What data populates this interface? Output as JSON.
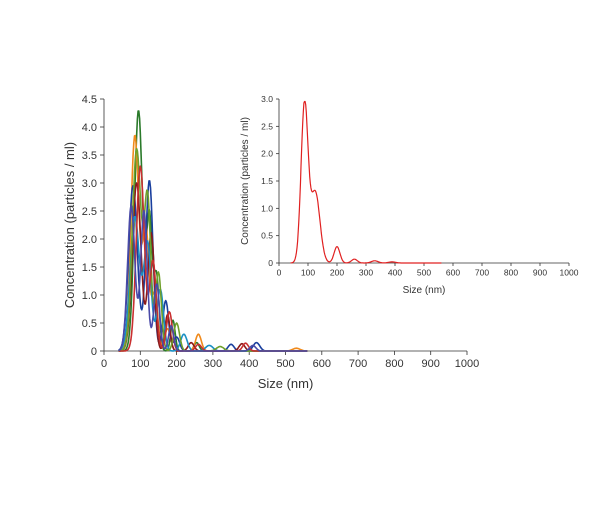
{
  "chart_data": [
    {
      "type": "line",
      "panel": "main",
      "xlabel": "Size (nm)",
      "ylabel": "Concentration (particles / ml)",
      "xlim": [
        0,
        1000
      ],
      "ylim": [
        0,
        4.5
      ],
      "x_ticks": [
        0,
        100,
        200,
        300,
        400,
        500,
        600,
        700,
        800,
        900,
        1000
      ],
      "y_ticks": [
        0,
        0.5,
        1.0,
        1.5,
        2.0,
        2.5,
        3.0,
        3.5,
        4.0,
        4.5
      ],
      "y_tick_labels": [
        "0",
        "0.5",
        "1.0",
        "1.5",
        "2.0",
        "2.5",
        "3.0",
        "3.5",
        "4.0",
        "4.5"
      ],
      "grid": false,
      "legend": "none",
      "series": [
        {
          "color": "#2a7a2a",
          "peaks": [
            [
              95,
              4.3,
              11
            ],
            [
              125,
              2.4,
              8
            ],
            [
              145,
              1.3,
              7
            ],
            [
              190,
              0.55,
              6
            ],
            [
              255,
              0.15,
              7
            ]
          ]
        },
        {
          "color": "#f08a1c",
          "peaks": [
            [
              85,
              3.85,
              11
            ],
            [
              115,
              2.2,
              9
            ],
            [
              140,
              1.0,
              8
            ],
            [
              175,
              0.4,
              8
            ],
            [
              260,
              0.3,
              8
            ],
            [
              530,
              0.05,
              10
            ]
          ]
        },
        {
          "color": "#1a3f9e",
          "peaks": [
            [
              80,
              2.95,
              12
            ],
            [
              125,
              3.05,
              10
            ],
            [
              170,
              0.9,
              8
            ],
            [
              200,
              0.25,
              8
            ],
            [
              350,
              0.12,
              8
            ],
            [
              420,
              0.15,
              9
            ]
          ]
        },
        {
          "color": "#8b1a1a",
          "peaks": [
            [
              90,
              3.0,
              12
            ],
            [
              130,
              2.1,
              9
            ],
            [
              175,
              0.65,
              7
            ],
            [
              240,
              0.15,
              8
            ],
            [
              380,
              0.13,
              8
            ]
          ]
        },
        {
          "color": "#1a8fc4",
          "peaks": [
            [
              85,
              2.4,
              13
            ],
            [
              120,
              1.9,
              10
            ],
            [
              155,
              1.1,
              9
            ],
            [
              220,
              0.3,
              9
            ],
            [
              290,
              0.1,
              10
            ]
          ]
        },
        {
          "color": "#6fa02a",
          "peaks": [
            [
              90,
              3.6,
              12
            ],
            [
              120,
              2.7,
              9
            ],
            [
              150,
              1.4,
              8
            ],
            [
              200,
              0.5,
              8
            ],
            [
              320,
              0.08,
              10
            ]
          ]
        },
        {
          "color": "#c93030",
          "peaks": [
            [
              100,
              3.3,
              11
            ],
            [
              135,
              1.6,
              9
            ],
            [
              180,
              0.7,
              8
            ],
            [
              260,
              0.12,
              8
            ],
            [
              390,
              0.14,
              8
            ]
          ]
        },
        {
          "color": "#4a4aa8",
          "peaks": [
            [
              75,
              2.6,
              10
            ],
            [
              110,
              2.5,
              9
            ],
            [
              145,
              1.2,
              8
            ],
            [
              185,
              0.45,
              7
            ],
            [
              410,
              0.1,
              8
            ]
          ]
        }
      ]
    },
    {
      "type": "line",
      "panel": "inset",
      "xlabel": "Size (nm)",
      "ylabel": "Concentration (particles / ml)",
      "xlim": [
        0,
        1000
      ],
      "ylim": [
        0,
        3.0
      ],
      "x_ticks": [
        0,
        100,
        200,
        300,
        400,
        500,
        600,
        700,
        800,
        900,
        1000
      ],
      "y_ticks": [
        0,
        0.5,
        1.0,
        1.5,
        2.0,
        2.5,
        3.0
      ],
      "y_tick_labels": [
        "0",
        "0.5",
        "1.0",
        "1.5",
        "2.0",
        "2.5",
        "3.0"
      ],
      "grid": false,
      "legend": "none",
      "series": [
        {
          "color": "#e02020",
          "peaks": [
            [
              88,
              2.9,
              12
            ],
            [
              125,
              1.3,
              16
            ],
            [
              200,
              0.3,
              10
            ],
            [
              260,
              0.07,
              10
            ],
            [
              330,
              0.04,
              12
            ],
            [
              390,
              0.02,
              12
            ]
          ]
        }
      ]
    }
  ]
}
